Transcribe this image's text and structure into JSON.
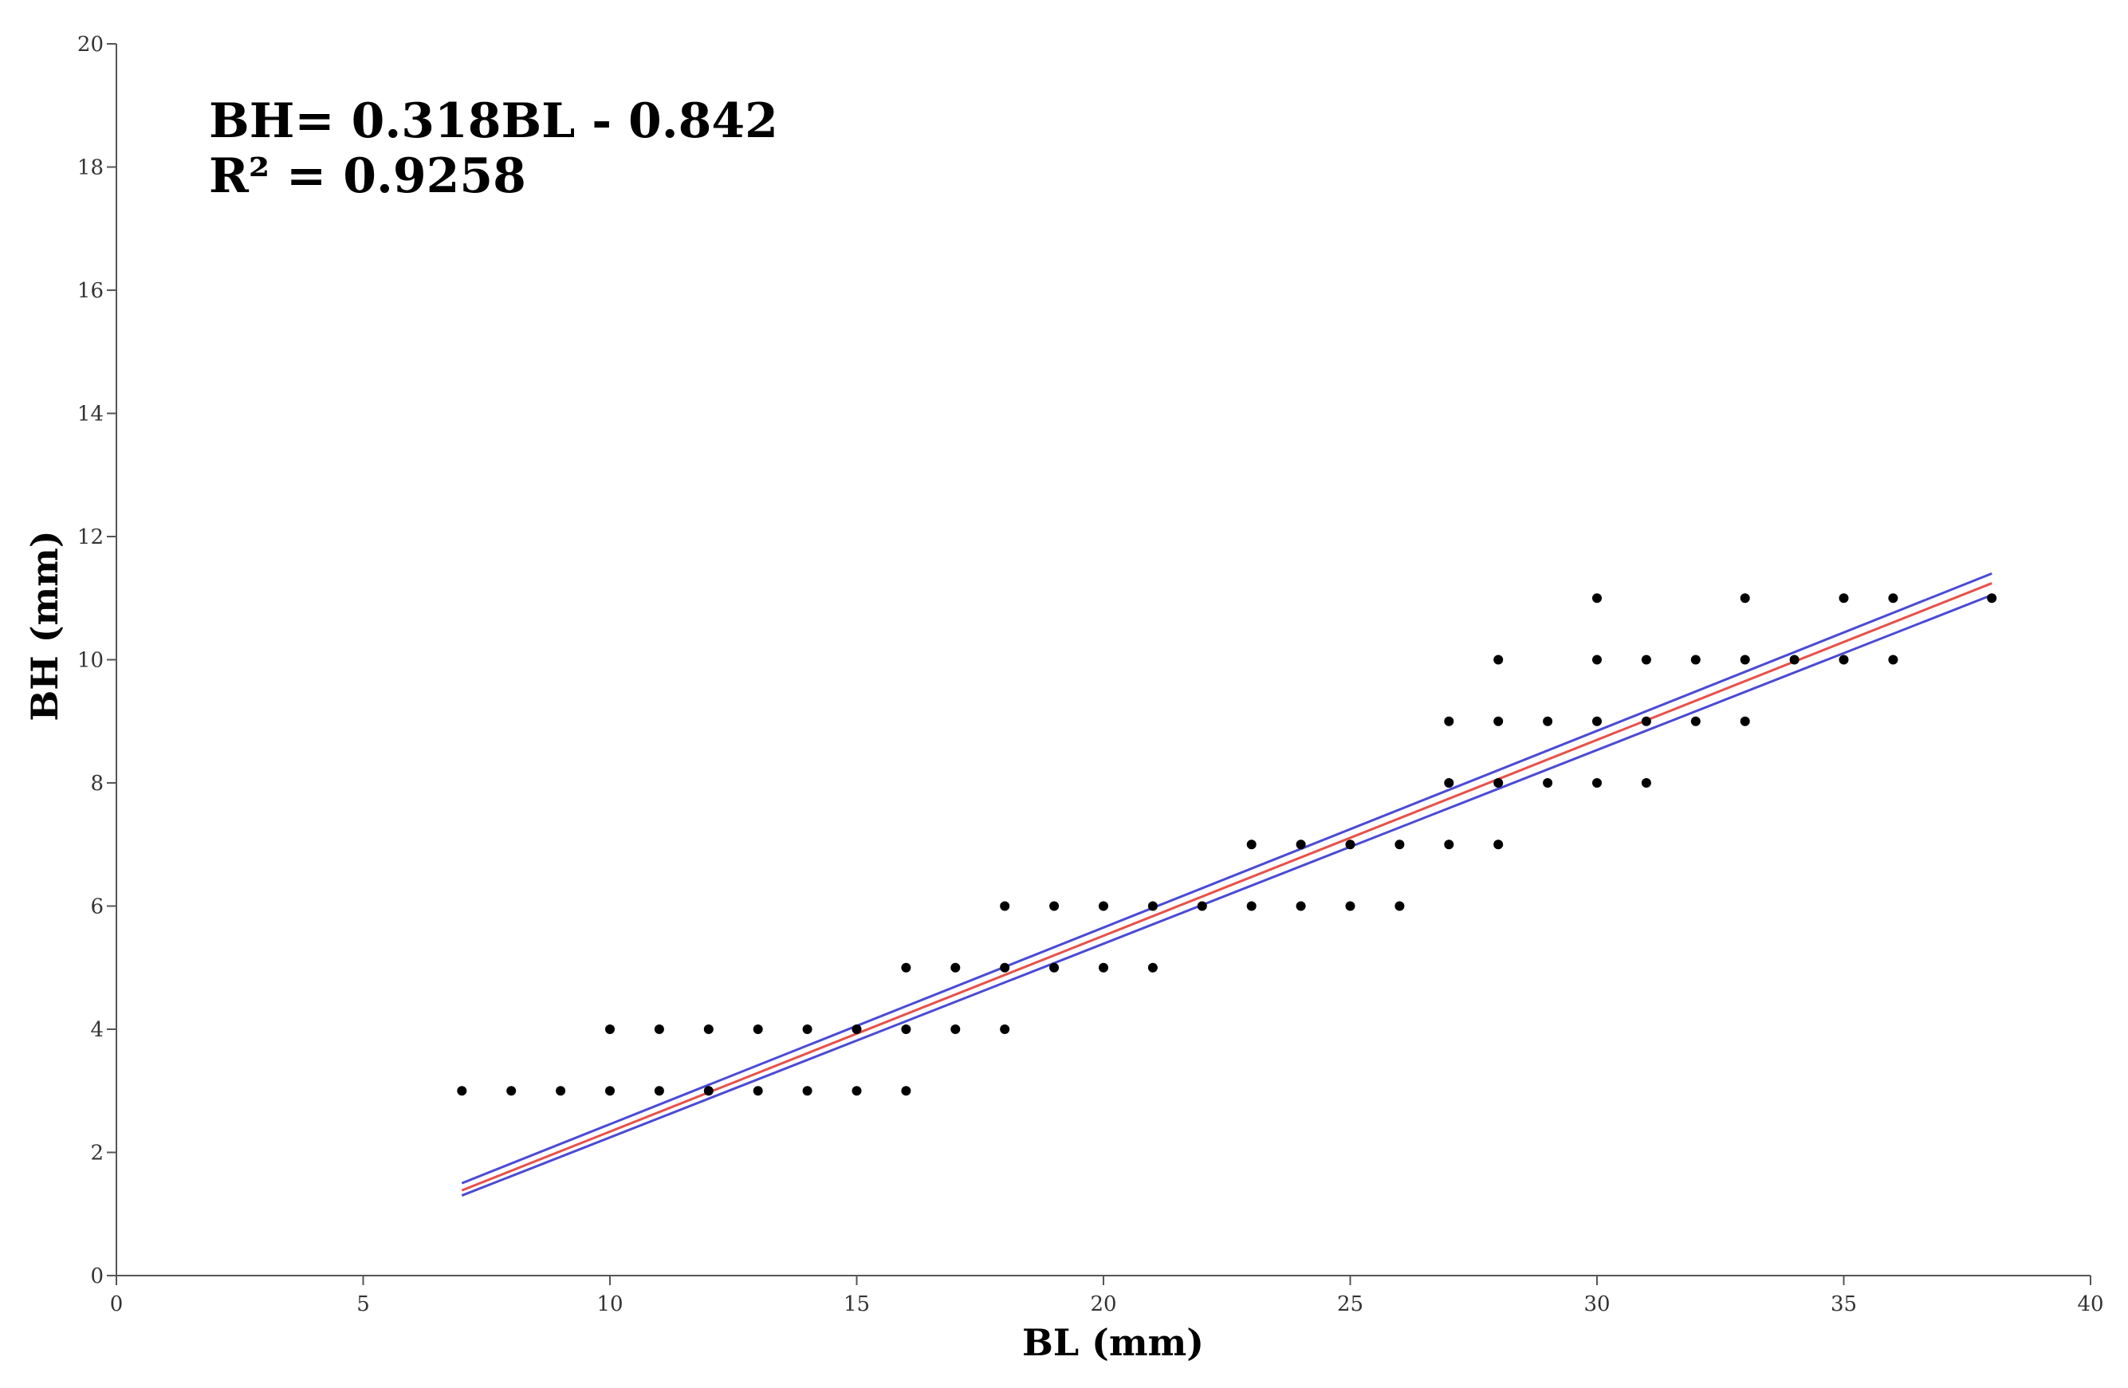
{
  "chart_data": {
    "type": "scatter",
    "xlabel": "BL (mm)",
    "ylabel": "BH (mm)",
    "xlim": [
      0,
      40
    ],
    "ylim": [
      0,
      20
    ],
    "x_ticks": [
      "0",
      "5",
      "10",
      "15",
      "20",
      "25",
      "30",
      "35",
      "40"
    ],
    "y_ticks": [
      "0",
      "2",
      "4",
      "6",
      "8",
      "10",
      "12",
      "14",
      "16",
      "18",
      "20"
    ],
    "grid": false,
    "annotations": [
      "BH= 0.318BL - 0.842",
      "R² = 0.9258"
    ],
    "points": [
      [
        7,
        3
      ],
      [
        8,
        3
      ],
      [
        9,
        3
      ],
      [
        10,
        3
      ],
      [
        10,
        4
      ],
      [
        11,
        3
      ],
      [
        11,
        4
      ],
      [
        12,
        3
      ],
      [
        12,
        4
      ],
      [
        13,
        3
      ],
      [
        13,
        4
      ],
      [
        14,
        3
      ],
      [
        14,
        4
      ],
      [
        15,
        3
      ],
      [
        15,
        4
      ],
      [
        16,
        3
      ],
      [
        16,
        4
      ],
      [
        16,
        5
      ],
      [
        17,
        4
      ],
      [
        17,
        5
      ],
      [
        18,
        4
      ],
      [
        18,
        5
      ],
      [
        18,
        6
      ],
      [
        19,
        5
      ],
      [
        19,
        6
      ],
      [
        20,
        5
      ],
      [
        20,
        6
      ],
      [
        21,
        5
      ],
      [
        21,
        6
      ],
      [
        22,
        6
      ],
      [
        23,
        6
      ],
      [
        23,
        7
      ],
      [
        24,
        6
      ],
      [
        24,
        7
      ],
      [
        25,
        6
      ],
      [
        25,
        7
      ],
      [
        26,
        6
      ],
      [
        26,
        7
      ],
      [
        27,
        7
      ],
      [
        27,
        8
      ],
      [
        27,
        9
      ],
      [
        28,
        7
      ],
      [
        28,
        8
      ],
      [
        28,
        9
      ],
      [
        28,
        10
      ],
      [
        29,
        8
      ],
      [
        29,
        9
      ],
      [
        30,
        8
      ],
      [
        30,
        9
      ],
      [
        30,
        10
      ],
      [
        30,
        11
      ],
      [
        31,
        8
      ],
      [
        31,
        9
      ],
      [
        31,
        10
      ],
      [
        32,
        9
      ],
      [
        32,
        10
      ],
      [
        33,
        9
      ],
      [
        33,
        10
      ],
      [
        33,
        11
      ],
      [
        34,
        10
      ],
      [
        35,
        10
      ],
      [
        35,
        11
      ],
      [
        36,
        10
      ],
      [
        36,
        11
      ],
      [
        38,
        11
      ]
    ],
    "regression": {
      "slope": 0.318,
      "intercept": -0.842,
      "x_range": [
        7,
        38
      ]
    },
    "confidence_band": {
      "upper": [
        [
          7,
          1.5
        ],
        [
          38,
          11.4
        ]
      ],
      "lower": [
        [
          7,
          1.3
        ],
        [
          38,
          11.05
        ]
      ]
    },
    "colors": {
      "points": "#000000",
      "fit_line": "#e8504a",
      "confidence_band": "#4a4ad6",
      "axis": "#555555"
    }
  }
}
